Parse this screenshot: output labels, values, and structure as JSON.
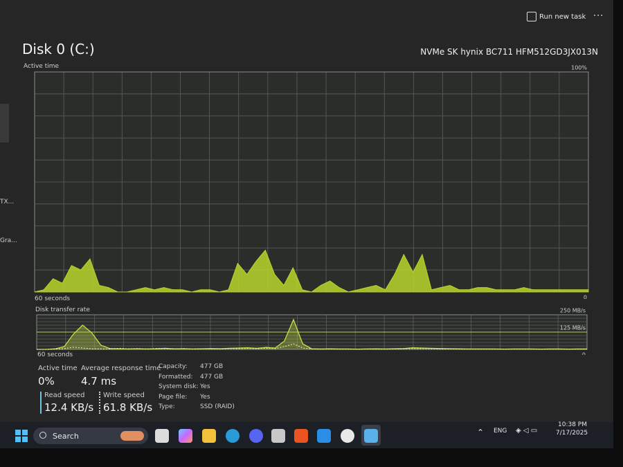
{
  "header": {
    "run_new_task": "Run new task",
    "title": "Disk 0 (C:)",
    "model": "NVMe SK hynix BC711 HFM512GD3JX013N"
  },
  "sidebar": {
    "items": [
      "TX...",
      "Gra..."
    ]
  },
  "chart_data": [
    {
      "type": "area",
      "title": "Active time",
      "xlabel": "60 seconds",
      "ylim": [
        0,
        100
      ],
      "yticks": [
        0,
        {
          "value": 100,
          "label": "100%"
        }
      ],
      "series": [
        {
          "color": "#b9d62c",
          "values": [
            0,
            1,
            6,
            4,
            12,
            10,
            15,
            3,
            2,
            0,
            0,
            1,
            2,
            1,
            2,
            1,
            1,
            0,
            1,
            1,
            0,
            1,
            13,
            8,
            14,
            19,
            8,
            3,
            11,
            1,
            0,
            3,
            5,
            2,
            0,
            1,
            2,
            3,
            1,
            8,
            17,
            9,
            17,
            1,
            2,
            3,
            1,
            1,
            2,
            2,
            1,
            1,
            1,
            2,
            1,
            1,
            1,
            1,
            1,
            1,
            1
          ]
        }
      ]
    },
    {
      "type": "line",
      "title": "Disk transfer rate",
      "xlabel": "60 seconds",
      "ylim": [
        0,
        250
      ],
      "yticks": [
        0,
        {
          "value": 125,
          "label": "125 MB/s"
        },
        {
          "value": 250,
          "label": "250 MB/s"
        }
      ],
      "series": [
        {
          "color": "#c6e04a",
          "values": [
            0,
            0,
            4,
            20,
            110,
            175,
            120,
            30,
            6,
            4,
            3,
            5,
            3,
            4,
            8,
            4,
            5,
            3,
            4,
            6,
            5,
            8,
            10,
            12,
            8,
            14,
            10,
            60,
            215,
            40,
            4,
            3,
            4,
            3,
            3,
            2,
            3,
            4,
            3,
            5,
            6,
            12,
            10,
            8,
            6,
            5,
            4,
            3,
            3,
            3,
            3,
            2,
            3,
            3,
            3,
            2,
            3,
            3,
            2,
            3,
            3
          ]
        },
        {
          "color": "#e6eec0",
          "values": [
            0,
            0,
            2,
            6,
            15,
            10,
            5,
            4,
            3,
            8,
            4,
            6,
            3,
            7,
            5,
            4,
            6,
            3,
            5,
            4,
            4,
            6,
            5,
            7,
            5,
            8,
            6,
            20,
            40,
            10,
            3,
            2,
            3,
            2,
            2,
            2,
            3,
            2,
            2,
            3,
            4,
            6,
            5,
            4,
            3,
            3,
            2,
            2,
            2,
            2,
            2,
            2,
            2,
            2,
            2,
            2,
            2,
            2,
            2,
            2,
            2
          ]
        }
      ]
    }
  ],
  "stats": {
    "active_time": {
      "label": "Active time",
      "value": "0%"
    },
    "response": {
      "label": "Average response time",
      "value": "4.7 ms"
    },
    "read": {
      "label": "Read speed",
      "value": "12.4 KB/s"
    },
    "write": {
      "label": "Write speed",
      "value": "61.8 KB/s"
    }
  },
  "properties": [
    {
      "label": "Capacity:",
      "value": "477 GB"
    },
    {
      "label": "Formatted:",
      "value": "477 GB"
    },
    {
      "label": "System disk:",
      "value": "Yes"
    },
    {
      "label": "Page file:",
      "value": "Yes"
    },
    {
      "label": "Type:",
      "value": "SSD (RAID)"
    }
  ],
  "taskbar": {
    "search": "Search",
    "language": "ENG",
    "time": "10:38 PM",
    "date": "7/17/2025"
  }
}
